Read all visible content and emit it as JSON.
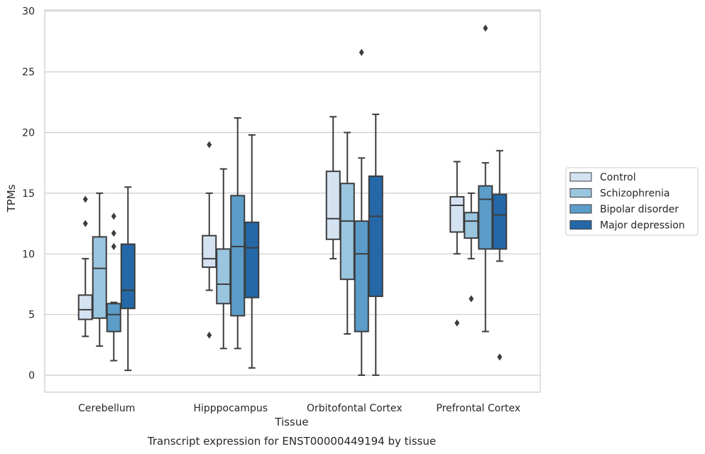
{
  "chart_data": {
    "type": "boxplot",
    "caption": "Transcript expression for ENST00000449194 by tissue",
    "xlabel": "Tissue",
    "ylabel": "TPMs",
    "ylim": [
      -1.4,
      30.1
    ],
    "yticks": [
      0,
      5,
      10,
      15,
      20,
      25,
      30
    ],
    "grid": true,
    "legend_position": "right",
    "categories": [
      "Cerebellum",
      "Hipppocampus",
      "Orbitofontal Cortex",
      "Prefrontal Cortex"
    ],
    "series": [
      {
        "name": "Control",
        "color": "#d4e2f2",
        "boxes": [
          {
            "whislo": 3.2,
            "q1": 4.6,
            "med": 5.4,
            "q3": 6.6,
            "whishi": 9.6,
            "fliers": [
              12.5,
              14.5
            ]
          },
          {
            "whislo": 7.0,
            "q1": 8.9,
            "med": 9.6,
            "q3": 11.5,
            "whishi": 15.0,
            "fliers": [
              3.3,
              19.0
            ]
          },
          {
            "whislo": 9.6,
            "q1": 11.2,
            "med": 12.9,
            "q3": 16.8,
            "whishi": 21.3,
            "fliers": []
          },
          {
            "whislo": 10.0,
            "q1": 11.8,
            "med": 14.0,
            "q3": 14.7,
            "whishi": 17.6,
            "fliers": [
              4.3
            ]
          }
        ]
      },
      {
        "name": "Schizophrenia",
        "color": "#9ac5df",
        "boxes": [
          {
            "whislo": 2.4,
            "q1": 4.7,
            "med": 8.8,
            "q3": 11.4,
            "whishi": 15.0,
            "fliers": []
          },
          {
            "whislo": 2.2,
            "q1": 5.9,
            "med": 7.5,
            "q3": 10.4,
            "whishi": 17.0,
            "fliers": []
          },
          {
            "whislo": 3.4,
            "q1": 7.9,
            "med": 12.7,
            "q3": 15.8,
            "whishi": 20.0,
            "fliers": []
          },
          {
            "whislo": 9.6,
            "q1": 11.3,
            "med": 12.7,
            "q3": 13.4,
            "whishi": 15.0,
            "fliers": [
              6.3
            ]
          }
        ]
      },
      {
        "name": "Bipolar disorder",
        "color": "#5b9cc9",
        "boxes": [
          {
            "whislo": 1.2,
            "q1": 3.6,
            "med": 5.0,
            "q3": 5.9,
            "whishi": 6.0,
            "fliers": [
              10.6,
              11.7,
              13.1
            ]
          },
          {
            "whislo": 2.2,
            "q1": 4.9,
            "med": 10.6,
            "q3": 14.8,
            "whishi": 21.2,
            "fliers": []
          },
          {
            "whislo": 0.0,
            "q1": 3.6,
            "med": 10.0,
            "q3": 12.7,
            "whishi": 17.9,
            "fliers": [
              26.6
            ]
          },
          {
            "whislo": 3.6,
            "q1": 10.4,
            "med": 14.5,
            "q3": 15.6,
            "whishi": 17.5,
            "fliers": [
              28.6
            ]
          }
        ]
      },
      {
        "name": "Major depression",
        "color": "#2468a8",
        "boxes": [
          {
            "whislo": 0.4,
            "q1": 5.5,
            "med": 7.0,
            "q3": 10.8,
            "whishi": 15.5,
            "fliers": []
          },
          {
            "whislo": 0.6,
            "q1": 6.4,
            "med": 10.5,
            "q3": 12.6,
            "whishi": 19.8,
            "fliers": []
          },
          {
            "whislo": 0.0,
            "q1": 6.5,
            "med": 13.1,
            "q3": 16.4,
            "whishi": 21.5,
            "fliers": []
          },
          {
            "whislo": 9.4,
            "q1": 10.4,
            "med": 13.2,
            "q3": 14.9,
            "whishi": 18.5,
            "fliers": [
              1.5
            ]
          }
        ]
      }
    ]
  }
}
